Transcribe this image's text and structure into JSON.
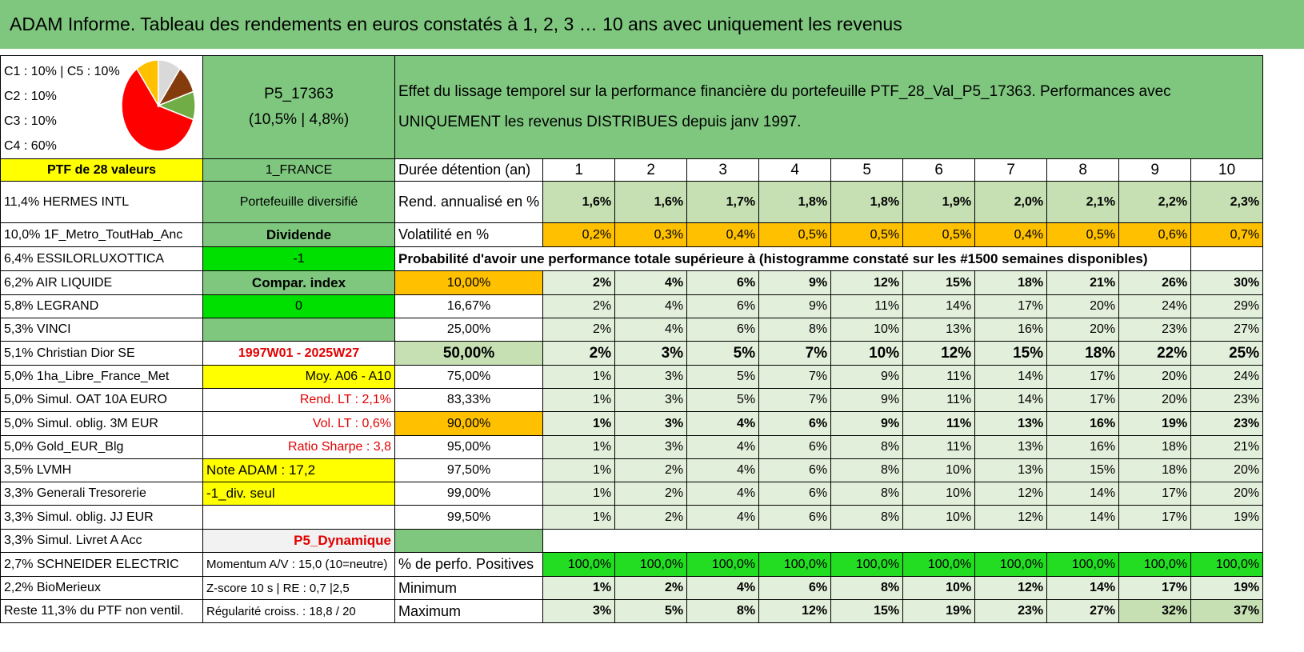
{
  "title": "ADAM Informe. Tableau des rendements en euros constatés à 1, 2, 3 … 10 ans avec uniquement les revenus",
  "allocation_lines": [
    "C1 : 10% | C5 : 10%",
    "C2 : 10%",
    "C3 : 10%",
    "C4 : 60%"
  ],
  "pie": {
    "slices": [
      {
        "label": "C4",
        "value": 60,
        "color": "#ff0000"
      },
      {
        "label": "C1",
        "value": 10,
        "color": "#ffc000"
      },
      {
        "label": "C2",
        "value": 10,
        "color": "#d9d9d9"
      },
      {
        "label": "C3",
        "value": 10,
        "color": "#843c0c"
      },
      {
        "label": "C5",
        "value": 10,
        "color": "#70ad47"
      }
    ]
  },
  "portfolio": {
    "code": "P5_17363",
    "stats": "(10,5% | 4,8%)"
  },
  "description": "Effet du lissage temporel sur la performance financière du portefeuille PTF_28_Val_P5_17363. Performances avec UNIQUEMENT les revenus DISTRIBUES depuis janv 1997.",
  "ptf_label": "PTF de 28 valeurs",
  "region": "1_FRANCE",
  "duration_label": "Durée détention (an)",
  "years": [
    "1",
    "2",
    "3",
    "4",
    "5",
    "6",
    "7",
    "8",
    "9",
    "10"
  ],
  "holdings": [
    "11,4% HERMES INTL",
    "10,0% 1F_Metro_ToutHab_Anc",
    "6,4% ESSILORLUXOTTICA",
    "6,2% AIR LIQUIDE",
    "5,8% LEGRAND",
    "5,3% VINCI",
    "5,1% Christian Dior SE",
    "5,0% 1ha_Libre_France_Met",
    "5,0% Simul. OAT 10A EURO",
    "5,0% Simul. oblig. 3M EUR",
    "5,0% Gold_EUR_Blg",
    "3,5% LVMH",
    "3,3% Generali Tresorerie",
    "3,3% Simul. oblig. JJ EUR",
    "3,3% Simul. Livret A Acc",
    "2,7% SCHNEIDER ELECTRIC",
    "2,2% BioMerieux",
    "Reste 11,3% du PTF non ventil."
  ],
  "info": {
    "diversified": "Portefeuille diversifié",
    "dividend": "Dividende",
    "minus_one": "-1",
    "compar": "Compar. index",
    "zero": "0",
    "period": "1997W01 - 2025W27",
    "moy": "Moy. A06 - A10",
    "rend_lt": "Rend. LT : 2,1%",
    "vol_lt": "Vol. LT : 0,6%",
    "sharpe": "Ratio Sharpe : 3,8",
    "note": "Note ADAM : 17,2",
    "div_seul": "-1_div. seul",
    "dynamique": "P5_Dynamique",
    "momentum": "Momentum A/V : 15,0 (10=neutre)",
    "zscore": "Z-score 10 s | RE : 0,7 |2,5",
    "regularite": "Régularité croiss. : 18,8 / 20"
  },
  "rend": {
    "label": "Rend. annualisé en %",
    "values": [
      "1,6%",
      "1,6%",
      "1,7%",
      "1,8%",
      "1,8%",
      "1,9%",
      "2,0%",
      "2,1%",
      "2,2%",
      "2,3%"
    ]
  },
  "vol": {
    "label": "Volatilité en %",
    "values": [
      "0,2%",
      "0,3%",
      "0,4%",
      "0,5%",
      "0,5%",
      "0,5%",
      "0,4%",
      "0,5%",
      "0,6%",
      "0,7%"
    ]
  },
  "prob_header": "Probabilité d'avoir une performance totale supérieure à (histogramme constaté sur les #1500 semaines disponibles)",
  "prob_rows": [
    {
      "pct": "10,00%",
      "values": [
        "2%",
        "4%",
        "6%",
        "9%",
        "12%",
        "15%",
        "18%",
        "21%",
        "26%",
        "30%"
      ]
    },
    {
      "pct": "16,67%",
      "values": [
        "2%",
        "4%",
        "6%",
        "9%",
        "11%",
        "14%",
        "17%",
        "20%",
        "24%",
        "29%"
      ]
    },
    {
      "pct": "25,00%",
      "values": [
        "2%",
        "4%",
        "6%",
        "8%",
        "10%",
        "13%",
        "16%",
        "20%",
        "23%",
        "27%"
      ]
    },
    {
      "pct": "50,00%",
      "values": [
        "2%",
        "3%",
        "5%",
        "7%",
        "10%",
        "12%",
        "15%",
        "18%",
        "22%",
        "25%"
      ]
    },
    {
      "pct": "75,00%",
      "values": [
        "1%",
        "3%",
        "5%",
        "7%",
        "9%",
        "11%",
        "14%",
        "17%",
        "20%",
        "24%"
      ]
    },
    {
      "pct": "83,33%",
      "values": [
        "1%",
        "3%",
        "5%",
        "7%",
        "9%",
        "11%",
        "14%",
        "17%",
        "20%",
        "23%"
      ]
    },
    {
      "pct": "90,00%",
      "values": [
        "1%",
        "3%",
        "4%",
        "6%",
        "9%",
        "11%",
        "13%",
        "16%",
        "19%",
        "23%"
      ]
    },
    {
      "pct": "95,00%",
      "values": [
        "1%",
        "3%",
        "4%",
        "6%",
        "8%",
        "11%",
        "13%",
        "16%",
        "18%",
        "21%"
      ]
    },
    {
      "pct": "97,50%",
      "values": [
        "1%",
        "2%",
        "4%",
        "6%",
        "8%",
        "10%",
        "13%",
        "15%",
        "18%",
        "20%"
      ]
    },
    {
      "pct": "99,00%",
      "values": [
        "1%",
        "2%",
        "4%",
        "6%",
        "8%",
        "10%",
        "12%",
        "14%",
        "17%",
        "20%"
      ]
    },
    {
      "pct": "99,50%",
      "values": [
        "1%",
        "2%",
        "4%",
        "6%",
        "8%",
        "10%",
        "12%",
        "14%",
        "17%",
        "19%"
      ]
    }
  ],
  "pos": {
    "label": "% de perfo. Positives",
    "values": [
      "100,0%",
      "100,0%",
      "100,0%",
      "100,0%",
      "100,0%",
      "100,0%",
      "100,0%",
      "100,0%",
      "100,0%",
      "100,0%"
    ]
  },
  "min": {
    "label": "Minimum",
    "values": [
      "1%",
      "2%",
      "4%",
      "6%",
      "8%",
      "10%",
      "12%",
      "14%",
      "17%",
      "19%"
    ]
  },
  "max": {
    "label": "Maximum",
    "values": [
      "3%",
      "5%",
      "8%",
      "12%",
      "15%",
      "19%",
      "23%",
      "27%",
      "32%",
      "37%"
    ]
  }
}
